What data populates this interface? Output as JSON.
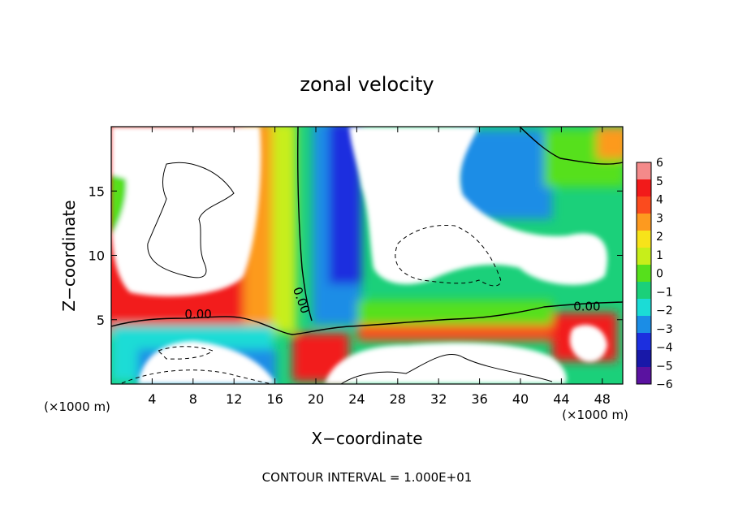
{
  "chart_data": {
    "type": "heatmap",
    "title": "zonal velocity",
    "xlabel": "X−coordinate",
    "ylabel": "Z−coordinate",
    "x_unit_left": "(×1000 m)",
    "x_unit_right": "(×1000 m)",
    "xlim": [
      0,
      50
    ],
    "ylim": [
      0,
      20
    ],
    "x_ticks": [
      4,
      8,
      12,
      16,
      20,
      24,
      28,
      32,
      36,
      40,
      44,
      48
    ],
    "y_ticks": [
      5,
      10,
      15
    ],
    "contour_label": "0.00",
    "footer": "CONTOUR INTERVAL = 1.000E+01",
    "colorbar": {
      "levels": [
        "6",
        "5",
        "4",
        "3",
        "2",
        "1",
        "0",
        "−1",
        "−2",
        "−3",
        "−4",
        "−5",
        "−6"
      ],
      "colors": [
        "#f48a8a",
        "#f21a1a",
        "#fb4b1e",
        "#fd9a1f",
        "#f7e31a",
        "#c7ee1a",
        "#56e01c",
        "#1bd07a",
        "#1bdcd6",
        "#1b8de6",
        "#1c2fdf",
        "#1818a8",
        "#5a12a0"
      ]
    },
    "zero_contour_labels": [
      {
        "x": 8.5,
        "z": 5.1
      },
      {
        "x": 18.2,
        "z": 6.4
      },
      {
        "x": 46.5,
        "z": 5.7
      }
    ]
  }
}
